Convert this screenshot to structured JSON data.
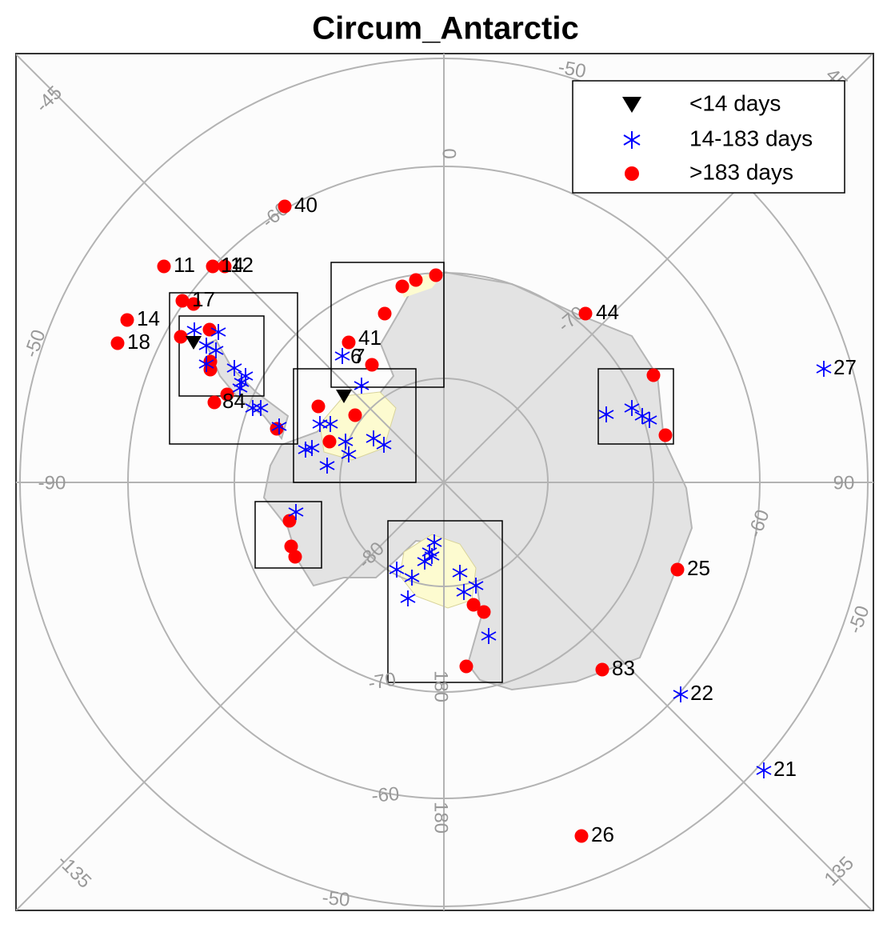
{
  "title": "Circum_Antarctic",
  "legend": [
    "<14 days",
    "14-183 days",
    ">183 days"
  ],
  "grid_labels": [
    "-50",
    "0",
    "-60",
    "-70",
    "-50",
    "-90",
    "90",
    "-80",
    "-60",
    "-50",
    "-70",
    "-60",
    "-50",
    "180",
    "180",
    "-45",
    "45",
    "-135",
    "135"
  ],
  "station_labels": [
    "40",
    "11",
    "14",
    "12",
    "17",
    "14",
    "18",
    "41",
    "6",
    "7",
    "84",
    "44",
    "27",
    "25",
    "83",
    "22",
    "21",
    "26"
  ]
}
